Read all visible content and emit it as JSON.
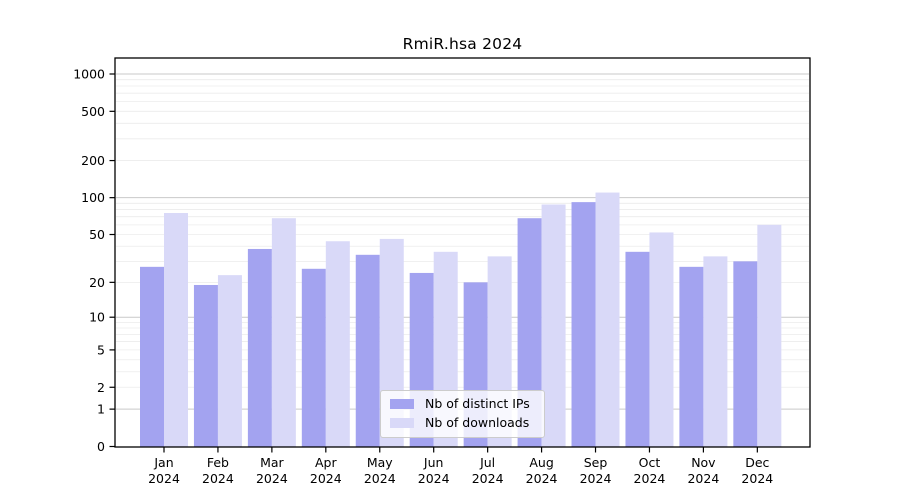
{
  "chart_data": {
    "type": "bar",
    "title": "RmiR.hsa 2024",
    "categories": [
      "Jan 2024",
      "Feb 2024",
      "Mar 2024",
      "Apr 2024",
      "May 2024",
      "Jun 2024",
      "Jul 2024",
      "Aug 2024",
      "Sep 2024",
      "Oct 2024",
      "Nov 2024",
      "Dec 2024"
    ],
    "series": [
      {
        "name": "Nb of distinct IPs",
        "color": "#a3a3f0",
        "values": [
          27,
          19,
          38,
          26,
          34,
          24,
          20,
          68,
          92,
          36,
          27,
          30
        ]
      },
      {
        "name": "Nb of downloads",
        "color": "#d9d9f8",
        "values": [
          75,
          23,
          68,
          44,
          46,
          36,
          33,
          88,
          110,
          52,
          33,
          60
        ]
      }
    ],
    "xlabel": "",
    "ylabel": "",
    "yscale": "log1p",
    "ylim": [
      0,
      1000
    ],
    "yticks": [
      0,
      1,
      2,
      5,
      10,
      20,
      50,
      100,
      200,
      500,
      1000
    ],
    "grid": {
      "on": true,
      "major_at": [
        1,
        10,
        100,
        1000
      ],
      "minor_multiples": [
        2,
        3,
        4,
        5,
        6,
        7,
        8,
        9
      ]
    },
    "legend_position": "lower center"
  },
  "colors": {
    "background": "#ffffff",
    "axis": "#000000",
    "grid_major": "#c9c9c9",
    "grid_minor": "#ececec",
    "legend_border": "#cccccc"
  }
}
